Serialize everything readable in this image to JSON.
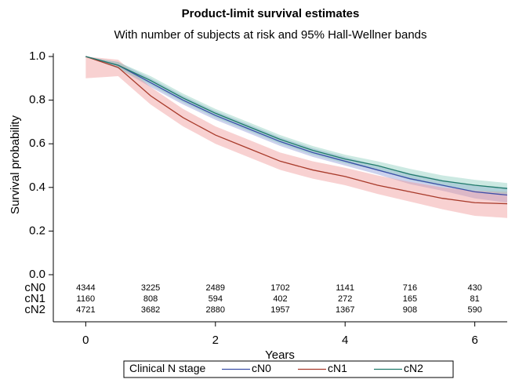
{
  "chart_data": {
    "type": "survival",
    "title": "Product-limit survival estimates",
    "subtitle": "With number of subjects at risk and 95% Hall-Wellner bands",
    "x_label": "Years",
    "y_label": "Survival probability",
    "x": [
      0,
      0.5,
      1,
      1.5,
      2,
      2.5,
      3,
      3.5,
      4,
      4.5,
      5,
      5.5,
      6,
      6.5
    ],
    "series": [
      {
        "name": "cN0",
        "color": "#3b4fa8",
        "band_color": "#8e9cd6",
        "values": [
          1.0,
          0.96,
          0.88,
          0.8,
          0.73,
          0.67,
          0.61,
          0.56,
          0.52,
          0.48,
          0.44,
          0.41,
          0.38,
          0.365
        ],
        "upper": [
          1.0,
          0.975,
          0.9,
          0.82,
          0.75,
          0.69,
          0.63,
          0.58,
          0.54,
          0.5,
          0.465,
          0.435,
          0.41,
          0.4
        ],
        "lower": [
          1.0,
          0.945,
          0.86,
          0.78,
          0.71,
          0.65,
          0.59,
          0.54,
          0.5,
          0.46,
          0.415,
          0.385,
          0.35,
          0.33
        ]
      },
      {
        "name": "cN1",
        "color": "#a83a2a",
        "band_color": "#f09a9a",
        "values": [
          1.0,
          0.95,
          0.82,
          0.72,
          0.64,
          0.58,
          0.52,
          0.48,
          0.45,
          0.41,
          0.38,
          0.35,
          0.33,
          0.325
        ],
        "upper": [
          1.0,
          0.985,
          0.86,
          0.76,
          0.68,
          0.62,
          0.56,
          0.52,
          0.49,
          0.455,
          0.425,
          0.4,
          0.385,
          0.38
        ],
        "lower": [
          0.9,
          0.91,
          0.78,
          0.68,
          0.6,
          0.54,
          0.48,
          0.44,
          0.41,
          0.37,
          0.335,
          0.3,
          0.27,
          0.26
        ]
      },
      {
        "name": "cN2",
        "color": "#1f7a6a",
        "band_color": "#8fcfbf",
        "values": [
          1.0,
          0.96,
          0.89,
          0.81,
          0.74,
          0.68,
          0.62,
          0.57,
          0.53,
          0.5,
          0.46,
          0.43,
          0.41,
          0.395
        ],
        "upper": [
          1.0,
          0.975,
          0.91,
          0.83,
          0.76,
          0.7,
          0.64,
          0.59,
          0.55,
          0.52,
          0.485,
          0.455,
          0.435,
          0.42
        ],
        "lower": [
          1.0,
          0.945,
          0.87,
          0.79,
          0.72,
          0.66,
          0.6,
          0.55,
          0.51,
          0.48,
          0.435,
          0.405,
          0.385,
          0.37
        ]
      }
    ],
    "xlim": [
      -0.5,
      6.5
    ],
    "ylim": [
      0,
      1
    ],
    "xticks": [
      0,
      2,
      4,
      6
    ],
    "yticks": [
      {
        "value": 0,
        "label": "0.0"
      },
      {
        "value": 0.2,
        "label": "0.2"
      },
      {
        "value": 0.4,
        "label": "0.4"
      },
      {
        "value": 0.6,
        "label": "0.6"
      },
      {
        "value": 0.8,
        "label": "0.8"
      },
      {
        "value": 1,
        "label": "1.0"
      }
    ],
    "risk_table": {
      "x": [
        0,
        1,
        2,
        3,
        4,
        5,
        6
      ],
      "rows": [
        {
          "name": "cN0",
          "counts": [
            4344,
            3225,
            2489,
            1702,
            1141,
            716,
            430
          ]
        },
        {
          "name": "cN1",
          "counts": [
            1160,
            808,
            594,
            402,
            272,
            165,
            81
          ]
        },
        {
          "name": "cN2",
          "counts": [
            4721,
            3682,
            2880,
            1957,
            1367,
            908,
            590
          ]
        }
      ]
    },
    "legend": "bottom",
    "legend_title": "Clinical N stage"
  }
}
